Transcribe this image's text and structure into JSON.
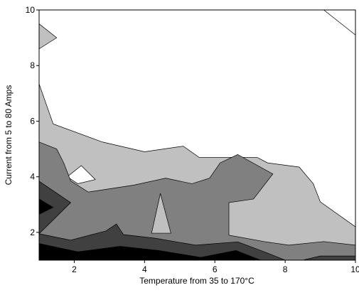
{
  "chart_data": {
    "type": "contour",
    "x_label": "Temperature from 35 to 170°C",
    "y_label": "Current from 5 to 80 Amps",
    "xlim": [
      1,
      10
    ],
    "xticks": [
      2,
      4,
      6,
      8,
      10
    ],
    "ylim": [
      1,
      10
    ],
    "yticks": [
      2,
      4,
      6,
      8,
      10
    ],
    "regions": [
      {
        "color": "#c0c0c0",
        "x": [
          1,
          1.4,
          2.8,
          4,
          5.1,
          5.55,
          7.2,
          7.5,
          8.4,
          8.8,
          9,
          10,
          10,
          1
        ],
        "y": [
          7.34,
          5.9,
          5.25,
          4.9,
          5.1,
          4.7,
          4.7,
          4.5,
          4.35,
          3.75,
          3.1,
          2.2,
          1,
          1
        ]
      },
      {
        "color": "#c0c0c0",
        "x": [
          1,
          1.5,
          1
        ],
        "y": [
          9.5,
          9.0,
          8.6
        ]
      },
      {
        "color": "#ffffff",
        "x": [
          9.1,
          10,
          10
        ],
        "y": [
          10,
          10,
          9.1
        ]
      },
      {
        "color": "#ffffff",
        "x": [
          2.2,
          2.6,
          2.1,
          1.8
        ],
        "y": [
          4.4,
          3.9,
          3.75,
          4.0
        ]
      },
      {
        "color": "#808080",
        "x": [
          1,
          1.5,
          1.7,
          1.9,
          2.4,
          3.7,
          4.6,
          5.35,
          5.85,
          6.15,
          6.65,
          7.65,
          7.1,
          6.4,
          6.4,
          7.4,
          8.1,
          9.1,
          10,
          10,
          1
        ],
        "y": [
          5.25,
          5.0,
          4.5,
          3.85,
          3.45,
          3.7,
          3.95,
          3.75,
          3.95,
          4.5,
          4.8,
          4.1,
          3.2,
          3.07,
          1.9,
          1.67,
          1.54,
          1.67,
          1.54,
          1,
          1
        ]
      },
      {
        "color": "#c0c0c0",
        "x": [
          4.45,
          4.2,
          4.75
        ],
        "y": [
          3.4,
          1.97,
          1.97
        ]
      },
      {
        "color": "#404040",
        "x": [
          1,
          1.9,
          1,
          1.9,
          2.9,
          3.2,
          3.4,
          4.3,
          5.45,
          6.65,
          7.45,
          8,
          1
        ],
        "y": [
          3.84,
          3.07,
          1.95,
          1.72,
          2.05,
          2.3,
          1.92,
          1.79,
          1.54,
          1.66,
          1.28,
          1.0,
          1
        ]
      },
      {
        "color": "#404040",
        "x": [
          8.5,
          9,
          10,
          10
        ],
        "y": [
          1.0,
          1.15,
          1.15,
          1
        ]
      },
      {
        "color": "#000000",
        "x": [
          1,
          1.4,
          1
        ],
        "y": [
          3.2,
          2.9,
          2.65
        ]
      },
      {
        "color": "#000000",
        "x": [
          1,
          2.1,
          3.3,
          4.4,
          5.6,
          6.6,
          7.3,
          1
        ],
        "y": [
          1.6,
          1.3,
          1.5,
          1.35,
          1.1,
          1.35,
          1.0,
          1
        ]
      }
    ]
  }
}
